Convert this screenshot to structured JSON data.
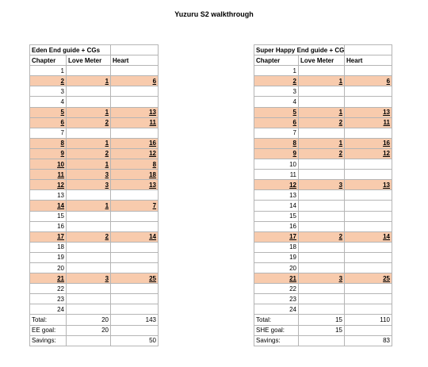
{
  "title": "Yuzuru S2 walkthrough",
  "tables": [
    {
      "heading": "Eden End guide + CGs",
      "columns": [
        "Chapter",
        "Love Meter",
        "Heart"
      ],
      "rows": [
        {
          "chapter": "1",
          "love": "",
          "heart": "",
          "hl": false
        },
        {
          "chapter": "2",
          "love": "1",
          "heart": "6",
          "hl": true
        },
        {
          "chapter": "3",
          "love": "",
          "heart": "",
          "hl": false
        },
        {
          "chapter": "4",
          "love": "",
          "heart": "",
          "hl": false
        },
        {
          "chapter": "5",
          "love": "1",
          "heart": "13",
          "hl": true
        },
        {
          "chapter": "6",
          "love": "2",
          "heart": "11",
          "hl": true
        },
        {
          "chapter": "7",
          "love": "",
          "heart": "",
          "hl": false
        },
        {
          "chapter": "8",
          "love": "1",
          "heart": "16",
          "hl": true
        },
        {
          "chapter": "9",
          "love": "2",
          "heart": "12",
          "hl": true
        },
        {
          "chapter": "10",
          "love": "1",
          "heart": "8",
          "hl": true
        },
        {
          "chapter": "11",
          "love": "3",
          "heart": "18",
          "hl": true
        },
        {
          "chapter": "12",
          "love": "3",
          "heart": "13",
          "hl": true
        },
        {
          "chapter": "13",
          "love": "",
          "heart": "",
          "hl": false
        },
        {
          "chapter": "14",
          "love": "1",
          "heart": "7",
          "hl": true
        },
        {
          "chapter": "15",
          "love": "",
          "heart": "",
          "hl": false
        },
        {
          "chapter": "16",
          "love": "",
          "heart": "",
          "hl": false
        },
        {
          "chapter": "17",
          "love": "2",
          "heart": "14",
          "hl": true
        },
        {
          "chapter": "18",
          "love": "",
          "heart": "",
          "hl": false
        },
        {
          "chapter": "19",
          "love": "",
          "heart": "",
          "hl": false
        },
        {
          "chapter": "20",
          "love": "",
          "heart": "",
          "hl": false
        },
        {
          "chapter": "21",
          "love": "3",
          "heart": "25",
          "hl": true
        },
        {
          "chapter": "22",
          "love": "",
          "heart": "",
          "hl": false
        },
        {
          "chapter": "23",
          "love": "",
          "heart": "",
          "hl": false
        },
        {
          "chapter": "24",
          "love": "",
          "heart": "",
          "hl": false
        }
      ],
      "summary": [
        {
          "label": "Total:",
          "love": "20",
          "heart": "143"
        },
        {
          "label": "EE goal:",
          "love": "20",
          "heart": ""
        },
        {
          "label": "Savings:",
          "love": "",
          "heart": "50"
        }
      ]
    },
    {
      "heading": "Super Happy End guide + CGs",
      "columns": [
        "Chapter",
        "Love Meter",
        "Heart"
      ],
      "rows": [
        {
          "chapter": "1",
          "love": "",
          "heart": "",
          "hl": false
        },
        {
          "chapter": "2",
          "love": "1",
          "heart": "6",
          "hl": true
        },
        {
          "chapter": "3",
          "love": "",
          "heart": "",
          "hl": false
        },
        {
          "chapter": "4",
          "love": "",
          "heart": "",
          "hl": false
        },
        {
          "chapter": "5",
          "love": "1",
          "heart": "13",
          "hl": true
        },
        {
          "chapter": "6",
          "love": "2",
          "heart": "11",
          "hl": true
        },
        {
          "chapter": "7",
          "love": "",
          "heart": "",
          "hl": false
        },
        {
          "chapter": "8",
          "love": "1",
          "heart": "16",
          "hl": true
        },
        {
          "chapter": "9",
          "love": "2",
          "heart": "12",
          "hl": true
        },
        {
          "chapter": "10",
          "love": "",
          "heart": "",
          "hl": false
        },
        {
          "chapter": "11",
          "love": "",
          "heart": "",
          "hl": false
        },
        {
          "chapter": "12",
          "love": "3",
          "heart": "13",
          "hl": true
        },
        {
          "chapter": "13",
          "love": "",
          "heart": "",
          "hl": false
        },
        {
          "chapter": "14",
          "love": "",
          "heart": "",
          "hl": false
        },
        {
          "chapter": "15",
          "love": "",
          "heart": "",
          "hl": false
        },
        {
          "chapter": "16",
          "love": "",
          "heart": "",
          "hl": false
        },
        {
          "chapter": "17",
          "love": "2",
          "heart": "14",
          "hl": true
        },
        {
          "chapter": "18",
          "love": "",
          "heart": "",
          "hl": false
        },
        {
          "chapter": "19",
          "love": "",
          "heart": "",
          "hl": false
        },
        {
          "chapter": "20",
          "love": "",
          "heart": "",
          "hl": false
        },
        {
          "chapter": "21",
          "love": "3",
          "heart": "25",
          "hl": true
        },
        {
          "chapter": "22",
          "love": "",
          "heart": "",
          "hl": false
        },
        {
          "chapter": "23",
          "love": "",
          "heart": "",
          "hl": false
        },
        {
          "chapter": "24",
          "love": "",
          "heart": "",
          "hl": false
        }
      ],
      "summary": [
        {
          "label": "Total:",
          "love": "15",
          "heart": "110"
        },
        {
          "label": "SHE goal:",
          "love": "15",
          "heart": ""
        },
        {
          "label": "Savings:",
          "love": "",
          "heart": "83"
        }
      ]
    }
  ],
  "colors": {
    "highlight": "#f8cbad",
    "grid": "#b5b5b5"
  }
}
